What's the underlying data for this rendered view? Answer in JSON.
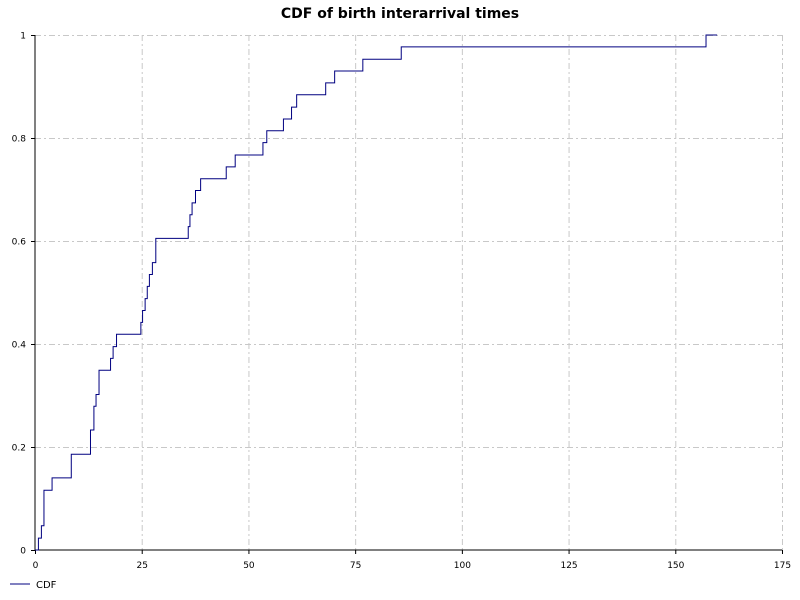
{
  "chart_data": {
    "type": "line",
    "title": "CDF of birth interarrival times",
    "xlabel": "",
    "ylabel": "",
    "xlim": [
      0,
      175
    ],
    "ylim": [
      0,
      1
    ],
    "x_ticks": [
      0,
      25,
      50,
      75,
      100,
      125,
      150,
      175
    ],
    "y_ticks": [
      0,
      0.2,
      0.4,
      0.6,
      0.8,
      1
    ],
    "x_tick_labels": [
      "0",
      "25",
      "50",
      "75",
      "100",
      "125",
      "150",
      "175"
    ],
    "y_tick_labels": [
      "0",
      "0.2",
      "0.4",
      "0.6",
      "0.8",
      "1"
    ],
    "grid": true,
    "legend_position": "bottom-left",
    "series": [
      {
        "name": "CDF",
        "color": "#000080",
        "step": true,
        "x": [
          0,
          0.8,
          1.5,
          2.1,
          4,
          8.5,
          13,
          13.8,
          14.3,
          15,
          17.7,
          18.3,
          19.1,
          24.8,
          25.2,
          25.8,
          26.3,
          26.8,
          27.5,
          28.3,
          35.9,
          36.3,
          36.8,
          37.6,
          38.8,
          40.1,
          44.8,
          45.7,
          46.9,
          53.4,
          54.3,
          55.1,
          58.2,
          60.1,
          61.3,
          68.1,
          69.3,
          70.2,
          76.8,
          85.8,
          157.2,
          159.8
        ],
        "y": [
          0,
          0.023,
          0.047,
          0.116,
          0.14,
          0.186,
          0.233,
          0.279,
          0.302,
          0.349,
          0.372,
          0.395,
          0.419,
          0.442,
          0.465,
          0.488,
          0.512,
          0.535,
          0.558,
          0.605,
          0.628,
          0.651,
          0.674,
          0.698,
          0.721,
          0.721,
          0.744,
          0.744,
          0.767,
          0.791,
          0.814,
          0.814,
          0.837,
          0.86,
          0.884,
          0.907,
          0.907,
          0.93,
          0.953,
          0.977,
          1,
          1
        ]
      }
    ]
  }
}
